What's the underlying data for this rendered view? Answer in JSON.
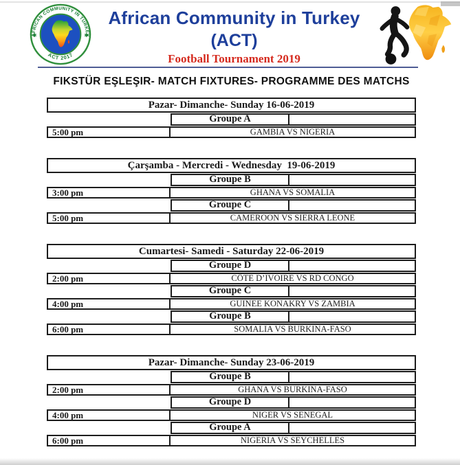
{
  "header": {
    "org_name": "African Community in Turkey",
    "org_abbr": "(ACT)",
    "event_title": "Football Tournament 2019",
    "logo": {
      "ring_top": "AFRICAN COMMUNITY IN TURKEY",
      "ring_bottom": "ACT 2017",
      "star": "✱"
    },
    "colors": {
      "title_blue": "#1e3f9b",
      "event_red": "#d52a1e",
      "rule_navy": "#4e5c94",
      "logo_green": "#2f8f3c",
      "map_gold": "#f5a81c"
    }
  },
  "page_title": "FIKSTÜR EŞLEŞIR- MATCH FIXTURES- PROGRAMME DES MATCHS",
  "schedule": [
    {
      "date": "Pazar- Dimanche- Sunday 16-06-2019",
      "entries": [
        {
          "group": "Groupe A",
          "time": "5:00 pm",
          "match": "GAMBIA VS NIGERIA"
        }
      ]
    },
    {
      "date": "Çarşamba - Mercredi - Wednesday  19-06-2019",
      "entries": [
        {
          "group": "Groupe B",
          "time": "3:00 pm",
          "match": "GHANA VS SOMALIA"
        },
        {
          "group": "Groupe C",
          "time": "5:00 pm",
          "match": "CAMEROON VS SIERRA LEONE"
        }
      ]
    },
    {
      "date": "Cumartesi- Samedi - Saturday 22-06-2019",
      "entries": [
        {
          "group": "Groupe D",
          "time": "2:00 pm",
          "match": "CÔTE D’IVOIRE VS RD CONGO"
        },
        {
          "group": "Groupe C",
          "time": "4:00 pm",
          "match": "GUINEE KONAKRY VS ZAMBIA"
        },
        {
          "group": "Groupe B",
          "time": "6:00 pm",
          "match": "SOMALIA VS BURKINA-FASO"
        }
      ]
    },
    {
      "date": "Pazar- Dimanche- Sunday 23-06-2019",
      "entries": [
        {
          "group": "Groupe B",
          "time": "2:00 pm",
          "match": "GHANA VS BURKINA-FASO"
        },
        {
          "group": "Groupe D",
          "time": "4:00 pm",
          "match": "NIGER VS SENEGAL"
        },
        {
          "group": "Groupe A",
          "time": "6:00 pm",
          "match": "NIGERIA VS SEYCHELLES"
        }
      ]
    }
  ]
}
